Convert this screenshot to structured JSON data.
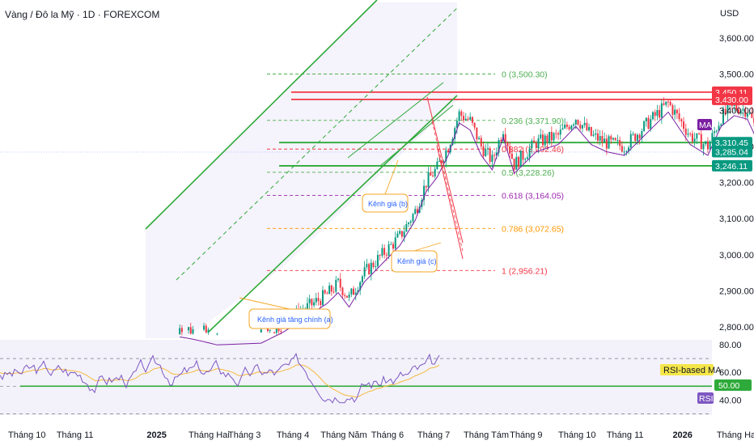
{
  "title": "Vàng / Đô la Mỹ · 1D · FOREXCOM",
  "currency": "USD",
  "colors": {
    "up": "#089981",
    "down": "#f23645",
    "channel": "#2eaa3a",
    "ma": "#7b1fa2",
    "rsi": "#7e57c2",
    "rsi_ma": "#f5b93b",
    "fib_0": "#4caf50",
    "fib_0236": "#4caf50",
    "fib_0382": "#f23645",
    "fib_05": "#4caf50",
    "fib_0618": "#9c27b0",
    "fib_0786": "#ff9800",
    "fib_1": "#f23645",
    "callout": "#f5a623"
  },
  "chart_data": {
    "type": "candlestick",
    "y_axis": {
      "unit": "USD",
      "range": [
        2760,
        3680
      ],
      "ticks": [
        "3,600.00",
        "3,500.00",
        "3,400.00",
        "3,300.00",
        "3,200.00",
        "3,100.00",
        "3,000.00",
        "2,900.00",
        "2,800.00"
      ],
      "tick_values": [
        3600,
        3500,
        3400,
        3300,
        3200,
        3100,
        3000,
        2900,
        2800
      ]
    },
    "x_axis": {
      "labels": [
        "Tháng 10",
        "Tháng 11",
        "2025",
        "Tháng Hai",
        "Tháng 3",
        "Tháng 4",
        "Tháng Năm",
        "Tháng 6",
        "Tháng 7",
        "Tháng Tám",
        "Tháng 9",
        "Tháng 10",
        "Tháng 11",
        "2026",
        "Tháng Ha"
      ],
      "label_index": [
        0,
        22,
        63,
        82,
        100,
        122,
        142,
        165,
        186,
        207,
        228,
        250,
        272,
        302,
        322
      ],
      "bold_labels": [
        "2025",
        "2026"
      ]
    },
    "price_badges": [
      {
        "label": "3,450.11",
        "value": 3450.11,
        "color": "#f23645"
      },
      {
        "label": "3,430.00",
        "value": 3430.0,
        "color": "#f23645"
      },
      {
        "label": "3,310.45",
        "value": 3310.45,
        "color": "#089981"
      },
      {
        "label": "3,285.04",
        "value": 3285.04,
        "color": "#089981"
      },
      {
        "label": "3,246.11",
        "value": 3246.11,
        "color": "#089981"
      }
    ],
    "ma_badge": "MA",
    "fibonacci": [
      {
        "level": "0",
        "price": 3500.3,
        "label": "0 (3,500.30)",
        "color": "#4caf50"
      },
      {
        "level": "0.236",
        "price": 3371.9,
        "label": "0.236 (3,371.90)",
        "color": "#4caf50"
      },
      {
        "level": "0.382",
        "price": 3292.46,
        "label": "0.382 (3,292.46)",
        "color": "#f23645"
      },
      {
        "level": "0.5",
        "price": 3228.26,
        "label": "0.5 (3,228.26)",
        "color": "#4caf50"
      },
      {
        "level": "0.618",
        "price": 3164.05,
        "label": "0.618 (3,164.05)",
        "color": "#9c27b0"
      },
      {
        "level": "0.786",
        "price": 3072.65,
        "label": "0.786 (3,072.65)",
        "color": "#ff9800"
      },
      {
        "level": "1",
        "price": 2956.21,
        "label": "1 (2,956.21)",
        "color": "#f23645"
      }
    ],
    "horizontal_lines": [
      {
        "price": 3450.11,
        "color": "#f23645"
      },
      {
        "price": 3430.0,
        "color": "#f23645"
      },
      {
        "price": 3310.45,
        "color": "#2eaa3a"
      },
      {
        "price": 3246.11,
        "color": "#2eaa3a"
      }
    ],
    "annotations": [
      {
        "text": "Kênh giá tăng chính (a)"
      },
      {
        "text": "Kênh giá (b)"
      },
      {
        "text": "Kênh giá (c)"
      }
    ],
    "rsi": {
      "ticks": [
        "80.00",
        "60.00",
        "40.00"
      ],
      "tick_values": [
        80,
        60,
        40
      ],
      "range": [
        30,
        90
      ],
      "bands": [
        70,
        50,
        30
      ],
      "level_line": 50,
      "badges": [
        {
          "label": "RSI-based MA",
          "value": 61,
          "color": "#f5e64a"
        },
        {
          "label": "50.00",
          "value": 50,
          "color": "#2eaa3a"
        },
        {
          "label": "RSI",
          "value": 43,
          "color": "#7e57c2"
        }
      ]
    }
  }
}
